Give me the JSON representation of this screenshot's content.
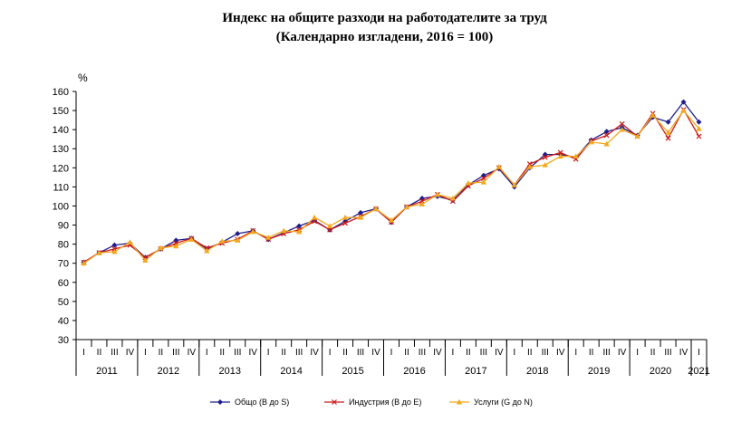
{
  "chart_data": {
    "type": "line",
    "title": "Индекс на общите разходи на работодателите за труд",
    "subtitle": "(Календарно изгладени, 2016 = 100)",
    "ylabel": "%",
    "ylim": [
      30,
      160
    ],
    "yticks": [
      30,
      40,
      50,
      60,
      70,
      80,
      90,
      100,
      110,
      120,
      130,
      140,
      150,
      160
    ],
    "quarter_labels": [
      "I",
      "II",
      "III",
      "IV"
    ],
    "years": [
      "2011",
      "2012",
      "2013",
      "2014",
      "2015",
      "2016",
      "2017",
      "2018",
      "2019",
      "2020",
      "2021"
    ],
    "x": [
      "2011 I",
      "2011 II",
      "2011 III",
      "2011 IV",
      "2012 I",
      "2012 II",
      "2012 III",
      "2012 IV",
      "2013 I",
      "2013 II",
      "2013 III",
      "2013 IV",
      "2014 I",
      "2014 II",
      "2014 III",
      "2014 IV",
      "2015 I",
      "2015 II",
      "2015 III",
      "2015 IV",
      "2016 I",
      "2016 II",
      "2016 III",
      "2016 IV",
      "2017 I",
      "2017 II",
      "2017 III",
      "2017 IV",
      "2018 I",
      "2018 II",
      "2018 III",
      "2018 IV",
      "2019 I",
      "2019 II",
      "2019 III",
      "2019 IV",
      "2020 I",
      "2020 II",
      "2020 III",
      "2020 IV",
      "2021 I"
    ],
    "series": [
      {
        "name": "Общо (B до S)",
        "color": "#1f1f8c",
        "marker": "diamond",
        "values": [
          70.5,
          75.5,
          79.5,
          80.5,
          73,
          77.5,
          82,
          83,
          77.5,
          81,
          85.5,
          87,
          82.5,
          86,
          89.5,
          92.5,
          87.5,
          92,
          96.5,
          98.5,
          91.5,
          99.5,
          104,
          105,
          103,
          111,
          116,
          119.5,
          110,
          120,
          127,
          127,
          125.5,
          134.5,
          139,
          141,
          137,
          146.5,
          144,
          154.5,
          144
        ]
      },
      {
        "name": "Индустрия (B до E)",
        "color": "#cc1a1a",
        "marker": "x",
        "values": [
          70.5,
          75.5,
          77.5,
          79.5,
          73,
          77.5,
          80.5,
          83,
          78,
          80.5,
          82.5,
          87,
          82.5,
          85.5,
          87.5,
          92,
          87.5,
          91,
          94.5,
          98.5,
          91.5,
          99.5,
          102.5,
          106,
          102.5,
          110.5,
          114.5,
          120,
          111,
          122,
          125.5,
          128,
          124.5,
          134,
          137,
          143,
          136.5,
          148.5,
          135.5,
          150.5,
          136.5
        ]
      },
      {
        "name": "Услуги (G до N)",
        "color": "#f2a81f",
        "marker": "triangle",
        "values": [
          70,
          75.5,
          76,
          81,
          71.5,
          78,
          79,
          82.5,
          76.5,
          81.5,
          82,
          86.5,
          83.5,
          87,
          86.5,
          94,
          89.5,
          94,
          94,
          98.5,
          92.5,
          99.5,
          101,
          106,
          104,
          112,
          112.5,
          120.5,
          111,
          120.5,
          121.5,
          126,
          126,
          133.5,
          132.5,
          140,
          136.5,
          147.5,
          138.5,
          150,
          140.5
        ]
      }
    ],
    "legend_position": "bottom",
    "grid": false
  }
}
